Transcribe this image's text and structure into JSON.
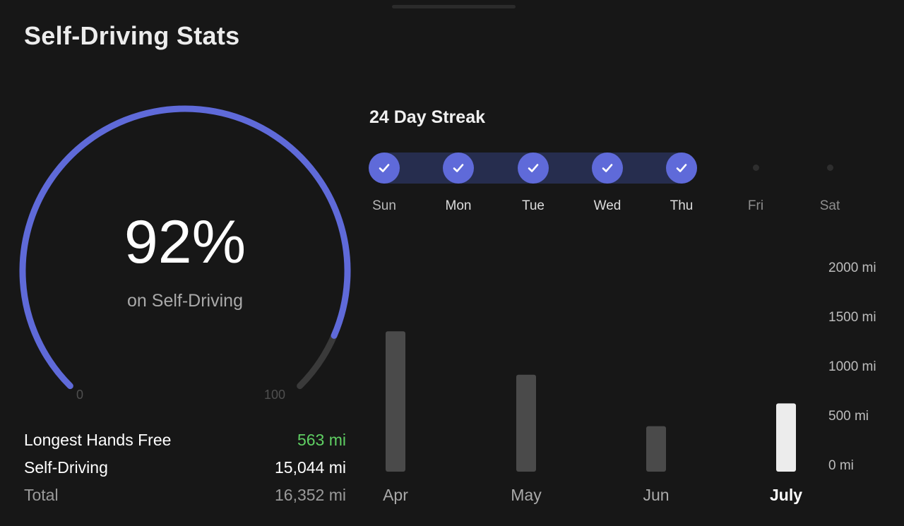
{
  "page": {
    "title": "Self-Driving Stats"
  },
  "gauge": {
    "value_text": "92%",
    "caption": "on Self-Driving",
    "percent": 92,
    "min_label": "0",
    "max_label": "100",
    "colors": {
      "fill": "#5f6ad9",
      "track": "#3a3a3a"
    }
  },
  "stats": [
    {
      "label": "Longest Hands Free",
      "value": "563 mi",
      "color": "#5fcf63"
    },
    {
      "label": "Self-Driving",
      "value": "15,044 mi",
      "color": "#ffffff"
    },
    {
      "label": "Total",
      "value": "16,352 mi",
      "color": "#9a9a9a"
    }
  ],
  "streak": {
    "title": "24 Day Streak",
    "days": [
      {
        "label": "Sun",
        "done": true
      },
      {
        "label": "Mon",
        "done": true
      },
      {
        "label": "Tue",
        "done": true
      },
      {
        "label": "Wed",
        "done": true
      },
      {
        "label": "Thu",
        "done": true
      },
      {
        "label": "Fri",
        "done": false
      },
      {
        "label": "Sat",
        "done": false
      }
    ],
    "check_icon": "checkmark-icon"
  },
  "chart_data": {
    "type": "bar",
    "categories": [
      "Apr",
      "May",
      "Jun",
      "July"
    ],
    "values": [
      1420,
      980,
      460,
      690
    ],
    "highlight_index": 3,
    "ylim": [
      0,
      2000
    ],
    "yticks": [
      "2000 mi",
      "1500 mi",
      "1000 mi",
      "500 mi",
      "0 mi"
    ],
    "title": "",
    "xlabel": "",
    "ylabel": "",
    "colors": {
      "bar": "#4a4a4a",
      "highlight": "#ececec"
    }
  }
}
